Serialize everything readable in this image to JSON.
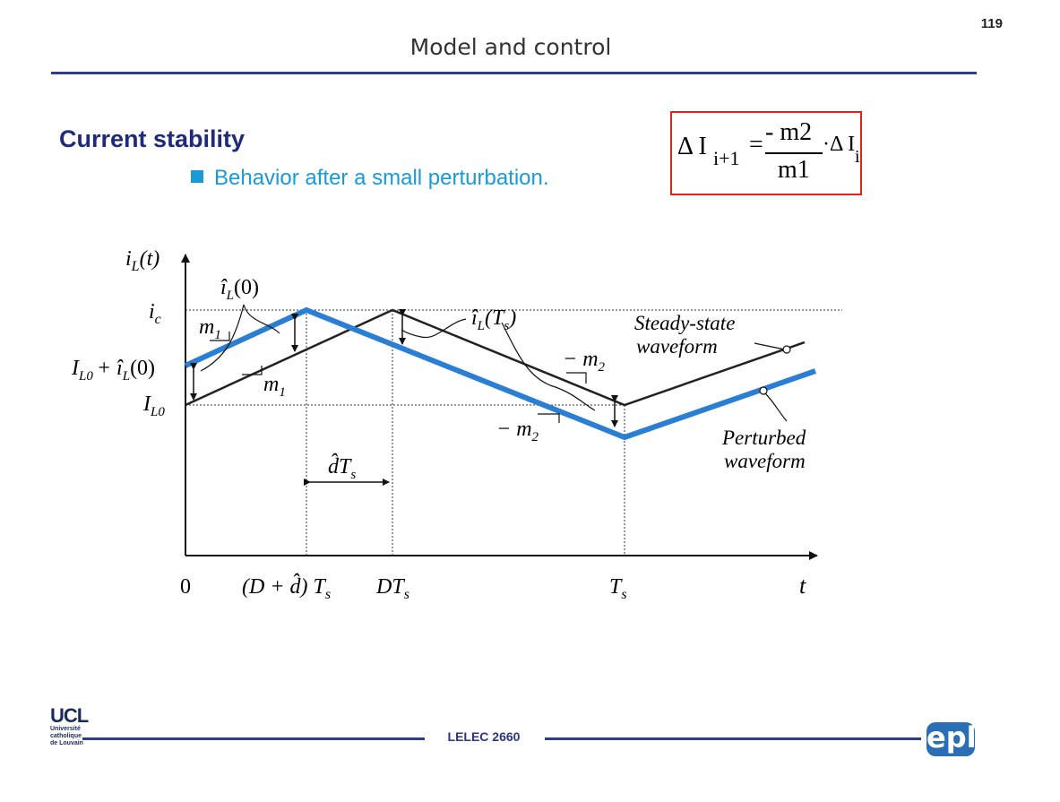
{
  "header": {
    "page_number": "119",
    "title": "Model and control"
  },
  "main": {
    "heading": "Current stability",
    "bullet": "Behavior after a small perturbation."
  },
  "formula": {
    "delta_lhs": "Δ I",
    "lhs_sub": "i+1",
    "equals": "=",
    "numerator": "- m2",
    "denominator": "m1",
    "dot_delta": "·Δ I",
    "rhs_sub": "i"
  },
  "diagram": {
    "y_axis_label": "i",
    "y_axis_label_sub": "L",
    "y_axis_label_arg": "(t)",
    "x_axis_label": "t",
    "tick_ic": "i",
    "tick_ic_sub": "c",
    "tick_IL0_perturbed": "I",
    "tick_IL0_perturbed_sub": "L0",
    "tick_IL0_perturbed_tail": "+ î",
    "tick_IL0_perturbed_tail_sub": "L",
    "tick_IL0_perturbed_arg": "(0)",
    "tick_IL0": "I",
    "tick_IL0_sub": "L0",
    "x_tick_0": "0",
    "x_tick_Dd": "(D + d̂) T",
    "x_tick_Dd_sub": "s",
    "x_tick_DTs": "DT",
    "x_tick_DTs_sub": "s",
    "x_tick_Ts": "T",
    "x_tick_Ts_sub": "s",
    "label_i0": "î",
    "label_i0_sub": "L",
    "label_i0_arg": "(0)",
    "label_iTs": "î",
    "label_iTs_sub": "L",
    "label_iTs_arg": "(T",
    "label_iTs_arg_sub": "s",
    "label_iTs_close": ")",
    "slope_m1_a": "m",
    "slope_m1_a_sub": "1",
    "slope_m1_b": "m",
    "slope_m1_b_sub": "1",
    "slope_m2_a": "− m",
    "slope_m2_a_sub": "2",
    "slope_m2_b": "− m",
    "slope_m2_b_sub": "2",
    "dTs_label": "d̂T",
    "dTs_label_sub": "s",
    "steady_state_1": "Steady-state",
    "steady_state_2": "waveform",
    "perturbed_1": "Perturbed",
    "perturbed_2": "waveform",
    "steady_color": "#222222",
    "perturbed_color": "#2a7fd4"
  },
  "footer": {
    "course": "LELEC 2660",
    "ucl_text": "UCL",
    "ucl_line1": "Université",
    "ucl_line2": "catholique",
    "ucl_line3": "de Louvain",
    "epl_text": "epl"
  }
}
